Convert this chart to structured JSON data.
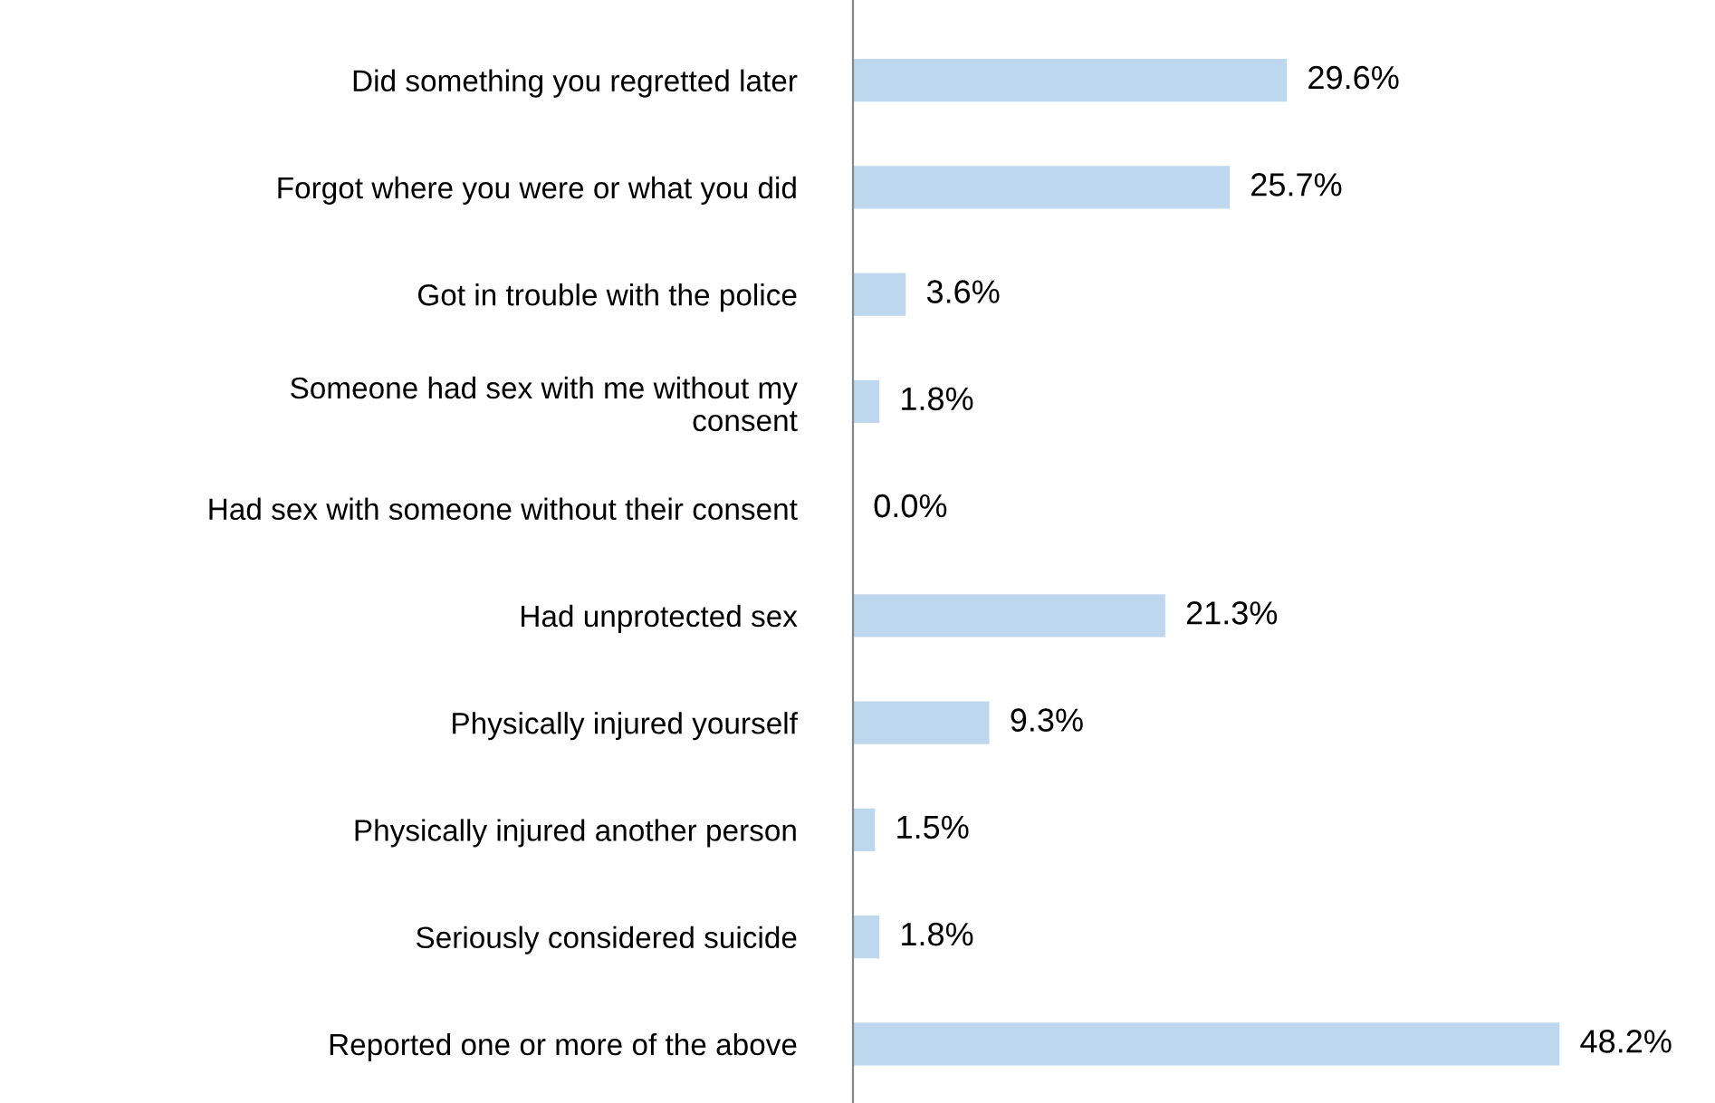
{
  "chart_data": {
    "type": "bar",
    "orientation": "horizontal",
    "categories": [
      "Did something you regretted later",
      "Forgot where you were or what you did",
      "Got in trouble with the police",
      "Someone had sex with me without my\nconsent",
      "Had sex with someone without their consent",
      "Had unprotected sex",
      "Physically injured yourself",
      "Physically injured another person",
      "Seriously considered suicide",
      "Reported one or more of the above"
    ],
    "values": [
      29.6,
      25.7,
      3.6,
      1.8,
      0.0,
      21.3,
      9.3,
      1.5,
      1.8,
      48.2
    ],
    "value_labels": [
      "29.6%",
      "25.7%",
      "3.6%",
      "1.8%",
      "0.0%",
      "21.3%",
      "9.3%",
      "1.5%",
      "1.8%",
      "48.2%"
    ],
    "color": "#bdd7ee",
    "grid": false,
    "legend": false,
    "tick_labels": "y"
  }
}
